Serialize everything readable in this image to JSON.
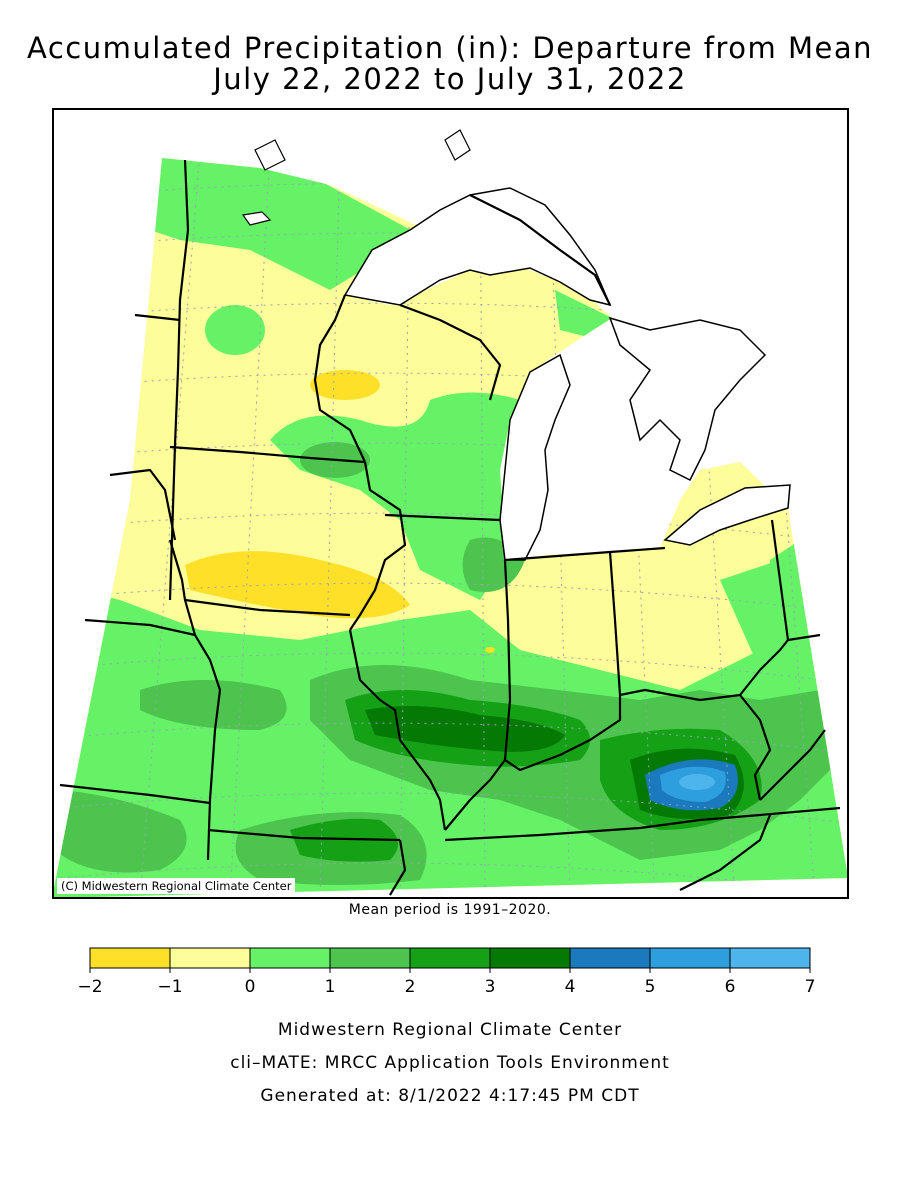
{
  "title": {
    "line1": "Accumulated Precipitation (in): Departure from Mean",
    "line2": "July 22, 2022 to July 31, 2022"
  },
  "map": {
    "copyright": "(C) Midwestern Regional Climate Center",
    "mean_period": "Mean period is 1991–2020."
  },
  "legend": {
    "ticks": [
      "−2",
      "−1",
      "0",
      "1",
      "2",
      "3",
      "4",
      "5",
      "6",
      "7"
    ],
    "bins": [
      {
        "from": -2,
        "to": -1,
        "color": "#fde027"
      },
      {
        "from": -1,
        "to": 0,
        "color": "#fdfd9a"
      },
      {
        "from": 0,
        "to": 1,
        "color": "#66f266"
      },
      {
        "from": 1,
        "to": 2,
        "color": "#4dc44d"
      },
      {
        "from": 2,
        "to": 3,
        "color": "#15a115"
      },
      {
        "from": 3,
        "to": 4,
        "color": "#047a04"
      },
      {
        "from": 4,
        "to": 5,
        "color": "#1b79bd"
      },
      {
        "from": 5,
        "to": 6,
        "color": "#2d9fde"
      },
      {
        "from": 6,
        "to": 7,
        "color": "#4db5ec"
      }
    ]
  },
  "footer": {
    "line1": "Midwestern Regional Climate Center",
    "line2": "cli–MATE: MRCC Application Tools Environment",
    "line3": "Generated at: 8/1/2022 4:17:45 PM CDT"
  }
}
